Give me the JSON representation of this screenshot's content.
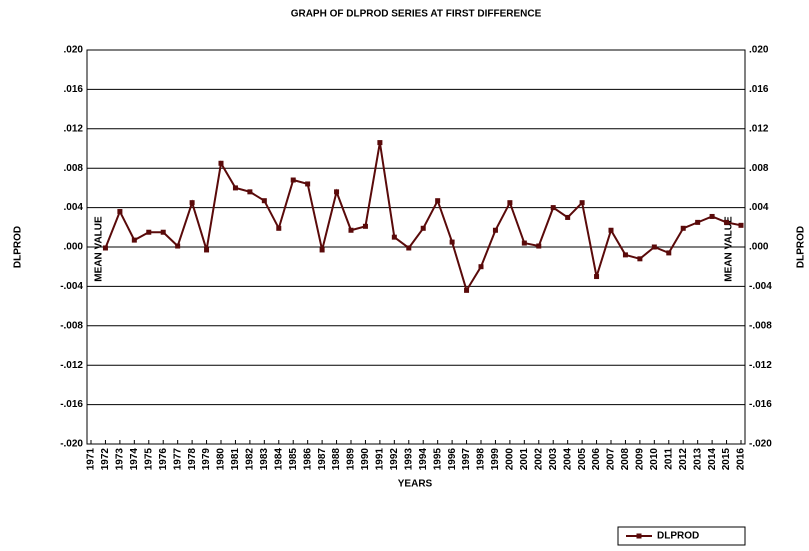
{
  "chart_data": {
    "type": "line",
    "title": "GRAPH OF DLPROD SERIES AT FIRST DIFFERENCE",
    "xlabel": "YEARS",
    "ylabel": "DLPROD",
    "y2label": "DLPROD",
    "categories": [
      "1971",
      "1972",
      "1973",
      "1974",
      "1975",
      "1976",
      "1977",
      "1978",
      "1979",
      "1980",
      "1981",
      "1982",
      "1983",
      "1984",
      "1985",
      "1986",
      "1987",
      "1988",
      "1989",
      "1990",
      "1991",
      "1992",
      "1993",
      "1994",
      "1995",
      "1996",
      "1997",
      "1998",
      "1999",
      "2000",
      "2001",
      "2002",
      "2003",
      "2004",
      "2005",
      "2006",
      "2007",
      "2008",
      "2009",
      "2010",
      "2011",
      "2012",
      "2013",
      "2014",
      "2015",
      "2016"
    ],
    "series": [
      {
        "name": "DLPROD",
        "color": "#5a0a0a",
        "values": [
          null,
          -0.0001,
          0.0036,
          0.0007,
          0.0015,
          0.0015,
          0.0001,
          0.0045,
          -0.0003,
          0.0085,
          0.006,
          0.0056,
          0.0047,
          0.0019,
          0.0068,
          0.0064,
          -0.0003,
          0.0056,
          0.0017,
          0.0021,
          0.0106,
          0.001,
          -0.0001,
          0.0019,
          0.0047,
          0.0005,
          -0.0044,
          -0.002,
          0.0017,
          0.0045,
          0.0004,
          0.0001,
          0.004,
          0.003,
          0.0045,
          -0.003,
          0.0017,
          -0.0008,
          -0.0012,
          0.0,
          -0.0006,
          0.0019,
          0.0025,
          0.0031,
          0.0025,
          0.0022
        ]
      }
    ],
    "ylim": [
      -0.02,
      0.02
    ],
    "yticks": [
      {
        "value": -0.02,
        "label": "-.020"
      },
      {
        "value": -0.016,
        "label": "-.016"
      },
      {
        "value": -0.012,
        "label": "-.012"
      },
      {
        "value": -0.008,
        "label": "-.008"
      },
      {
        "value": -0.004,
        "label": "-.004"
      },
      {
        "value": 0,
        "label": ".000"
      },
      {
        "value": 0.004,
        "label": ".004"
      },
      {
        "value": 0.008,
        "label": ".008"
      },
      {
        "value": 0.012,
        "label": ".012"
      },
      {
        "value": 0.016,
        "label": ".016"
      },
      {
        "value": 0.02,
        "label": ".020"
      }
    ],
    "annotations": [
      "MEAN VALUE",
      "MEAN VALUE"
    ],
    "annotation_color": "#4f8a8a",
    "grid": true,
    "legend": "bottom-right"
  }
}
